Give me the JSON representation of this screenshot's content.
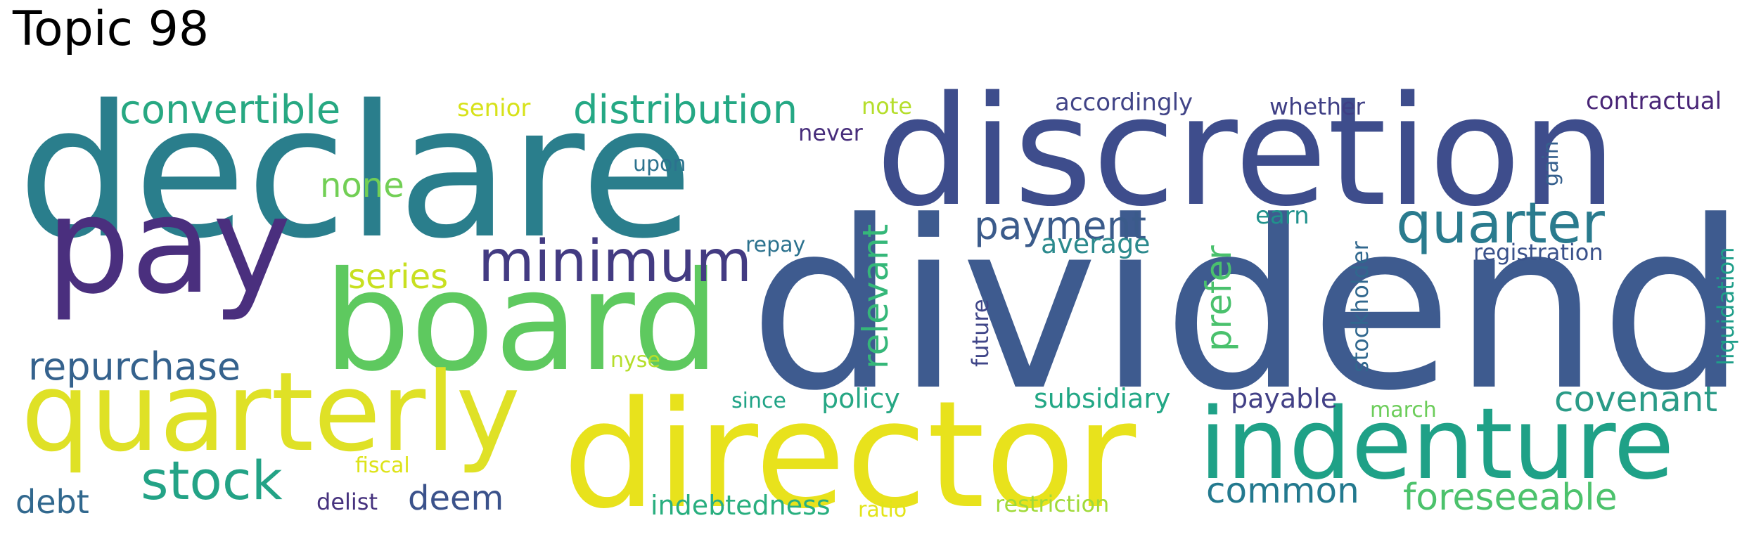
{
  "title": "Topic 98",
  "words": [
    {
      "text": "dividend",
      "color": "#3e5b8f"
    },
    {
      "text": "declare",
      "color": "#2a7e8c"
    },
    {
      "text": "discretion",
      "color": "#3e4d8c"
    },
    {
      "text": "director",
      "color": "#e8e21c"
    },
    {
      "text": "board",
      "color": "#5ec95f"
    },
    {
      "text": "pay",
      "color": "#4a2f7e"
    },
    {
      "text": "quarterly",
      "color": "#dfe126"
    },
    {
      "text": "indenture",
      "color": "#1fa187"
    },
    {
      "text": "minimum",
      "color": "#433b82"
    },
    {
      "text": "quarter",
      "color": "#2a7b8e"
    },
    {
      "text": "convertible",
      "color": "#27a882"
    },
    {
      "text": "distribution",
      "color": "#24a884"
    },
    {
      "text": "stock",
      "color": "#23a386"
    },
    {
      "text": "payment",
      "color": "#3b5b8b"
    },
    {
      "text": "repurchase",
      "color": "#35628d"
    },
    {
      "text": "covenant",
      "color": "#2a9b87"
    },
    {
      "text": "foreseeable",
      "color": "#4cc26c"
    },
    {
      "text": "common",
      "color": "#23798e"
    },
    {
      "text": "none",
      "color": "#72cf55"
    },
    {
      "text": "series",
      "color": "#c8e020"
    },
    {
      "text": "relevant",
      "color": "#35b779"
    },
    {
      "text": "prefer",
      "color": "#4ac16d"
    },
    {
      "text": "deem",
      "color": "#3b528b"
    },
    {
      "text": "debt",
      "color": "#31688e"
    },
    {
      "text": "policy",
      "color": "#26a784"
    },
    {
      "text": "subsidiary",
      "color": "#22a785"
    },
    {
      "text": "payable",
      "color": "#424086"
    },
    {
      "text": "indebtedness",
      "color": "#29af7f"
    },
    {
      "text": "average",
      "color": "#2c8a8d"
    },
    {
      "text": "accordingly",
      "color": "#414487"
    },
    {
      "text": "whether",
      "color": "#3f3f85"
    },
    {
      "text": "contractual",
      "color": "#482576"
    },
    {
      "text": "registration",
      "color": "#3b528b"
    },
    {
      "text": "liquidation",
      "color": "#1f9e89"
    },
    {
      "text": "stockholder",
      "color": "#31688e"
    },
    {
      "text": "senior",
      "color": "#d7e219"
    },
    {
      "text": "note",
      "color": "#b5de2b"
    },
    {
      "text": "never",
      "color": "#472d7b"
    },
    {
      "text": "upon",
      "color": "#2c728e"
    },
    {
      "text": "repay",
      "color": "#2c728e"
    },
    {
      "text": "earn",
      "color": "#21918c"
    },
    {
      "text": "gain",
      "color": "#355f8d"
    },
    {
      "text": "future",
      "color": "#404688"
    },
    {
      "text": "nyse",
      "color": "#b5de2b"
    },
    {
      "text": "since",
      "color": "#20a386"
    },
    {
      "text": "march",
      "color": "#6ccd5a"
    },
    {
      "text": "fiscal",
      "color": "#dde318"
    },
    {
      "text": "delist",
      "color": "#46327e"
    },
    {
      "text": "ratio",
      "color": "#e2e418"
    },
    {
      "text": "restriction",
      "color": "#a0da39"
    }
  ]
}
